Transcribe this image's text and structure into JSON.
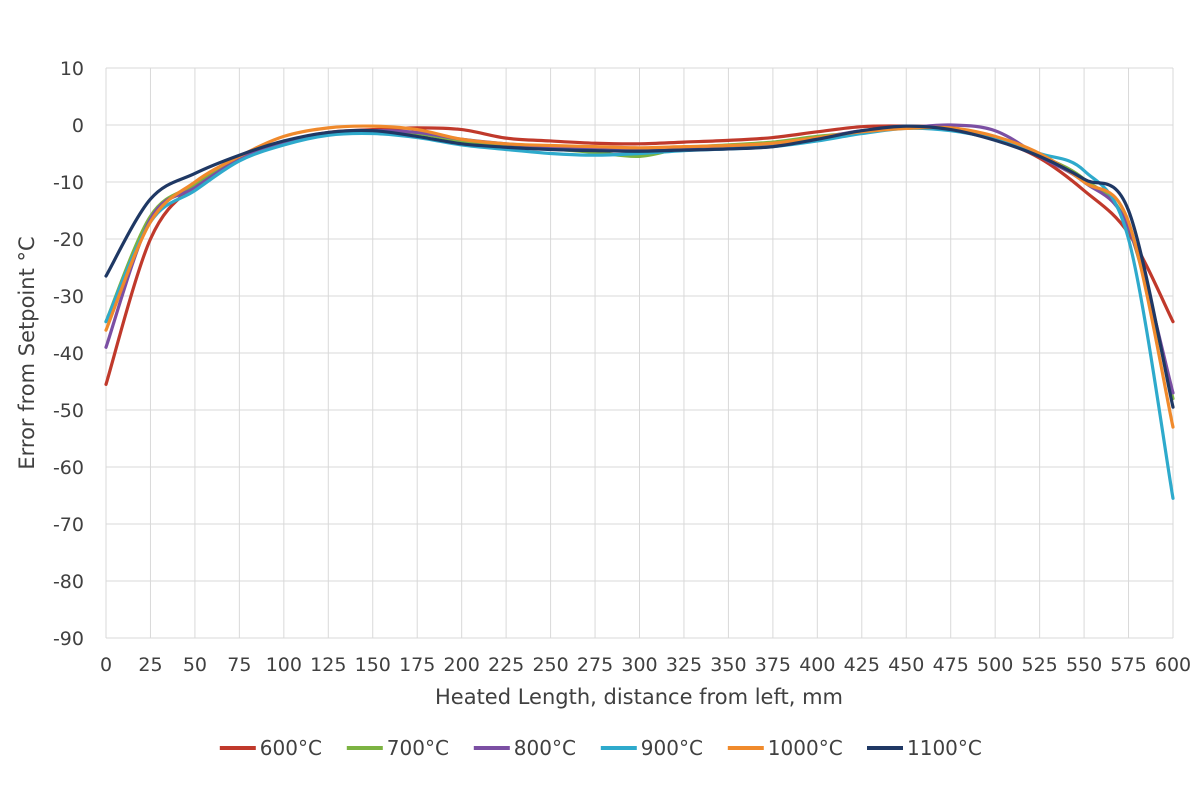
{
  "chart_data": {
    "type": "line",
    "title": "",
    "xlabel": "Heated Length, distance from left, mm",
    "ylabel": "Error from Setpoint °C",
    "xlim": [
      0,
      600
    ],
    "ylim": [
      -90,
      10
    ],
    "xticks": [
      0,
      25,
      50,
      75,
      100,
      125,
      150,
      175,
      200,
      225,
      250,
      275,
      300,
      325,
      350,
      375,
      400,
      425,
      450,
      475,
      500,
      525,
      550,
      575,
      600
    ],
    "yticks": [
      10,
      0,
      -10,
      -20,
      -30,
      -40,
      -50,
      -60,
      -70,
      -80,
      -90
    ],
    "grid": true,
    "legend_position": "bottom",
    "series": [
      {
        "name": "600°C",
        "color": "#c0392b",
        "x": [
          0,
          25,
          50,
          75,
          100,
          125,
          150,
          175,
          200,
          225,
          250,
          275,
          300,
          325,
          350,
          375,
          400,
          425,
          450,
          475,
          500,
          525,
          550,
          575,
          600
        ],
        "y": [
          -45.5,
          -20,
          -10.5,
          -6,
          -3,
          -1.3,
          -0.8,
          -0.5,
          -0.8,
          -2.3,
          -2.8,
          -3.2,
          -3.3,
          -3,
          -2.7,
          -2.2,
          -1.2,
          -0.3,
          -0.2,
          -0.5,
          -2.5,
          -5.8,
          -11.5,
          -19,
          -34.5
        ]
      },
      {
        "name": "700°C",
        "color": "#7cb342",
        "x": [
          0,
          25,
          50,
          75,
          100,
          125,
          150,
          175,
          200,
          225,
          250,
          275,
          300,
          325,
          350,
          375,
          400,
          425,
          450,
          475,
          500,
          525,
          550,
          575,
          600
        ],
        "y": [
          -34.5,
          -16,
          -10.5,
          -6,
          -3,
          -1.5,
          -1.1,
          -1.5,
          -2.8,
          -3.5,
          -4.2,
          -4.8,
          -5.5,
          -4,
          -3.5,
          -3,
          -2,
          -1.3,
          -0.5,
          -0.5,
          -2.2,
          -5.3,
          -9.5,
          -18,
          -48
        ]
      },
      {
        "name": "800°C",
        "color": "#7b4fa3",
        "x": [
          0,
          25,
          50,
          75,
          100,
          125,
          150,
          175,
          200,
          225,
          250,
          275,
          300,
          325,
          350,
          375,
          400,
          425,
          450,
          475,
          500,
          525,
          550,
          575,
          600
        ],
        "y": [
          -39,
          -16.5,
          -11,
          -6,
          -3,
          -1.5,
          -1,
          -1.3,
          -2.5,
          -3.3,
          -3.8,
          -4.2,
          -4.5,
          -4.3,
          -3.8,
          -3.3,
          -2.3,
          -1,
          -0.5,
          0,
          -1,
          -5.5,
          -10,
          -18,
          -47
        ]
      },
      {
        "name": "900°C",
        "color": "#2eaacc",
        "x": [
          0,
          25,
          50,
          75,
          100,
          125,
          150,
          175,
          200,
          225,
          250,
          275,
          300,
          325,
          350,
          375,
          400,
          425,
          450,
          475,
          500,
          525,
          550,
          575,
          600
        ],
        "y": [
          -34.5,
          -17,
          -11.5,
          -6.3,
          -3.5,
          -1.8,
          -1.5,
          -2.2,
          -3.5,
          -4.3,
          -5,
          -5.3,
          -5,
          -4.5,
          -4.2,
          -3.8,
          -2.8,
          -1.5,
          -0.6,
          -1,
          -2.5,
          -5,
          -8,
          -20,
          -65.5
        ]
      },
      {
        "name": "1000°C",
        "color": "#f08a2c",
        "x": [
          0,
          25,
          50,
          75,
          100,
          125,
          150,
          175,
          200,
          225,
          250,
          275,
          300,
          325,
          350,
          375,
          400,
          425,
          450,
          475,
          500,
          525,
          550,
          575,
          600
        ],
        "y": [
          -36,
          -17,
          -10,
          -5.5,
          -2,
          -0.5,
          -0.2,
          -0.8,
          -2.5,
          -3.3,
          -3.6,
          -3.8,
          -4,
          -3.8,
          -3.6,
          -3.2,
          -2.2,
          -1.2,
          -0.6,
          -0.5,
          -2,
          -5,
          -10,
          -17,
          -53
        ]
      },
      {
        "name": "1100°C",
        "color": "#1f3864",
        "x": [
          0,
          25,
          50,
          75,
          100,
          125,
          150,
          175,
          200,
          225,
          250,
          275,
          300,
          325,
          350,
          375,
          400,
          425,
          450,
          475,
          500,
          525,
          550,
          575,
          600
        ],
        "y": [
          -26.5,
          -13,
          -8.5,
          -5.3,
          -2.8,
          -1.3,
          -1,
          -2,
          -3.3,
          -3.9,
          -4.3,
          -4.5,
          -4.6,
          -4.4,
          -4.2,
          -3.8,
          -2.5,
          -1,
          -0.2,
          -0.8,
          -2.7,
          -5.5,
          -9.5,
          -15,
          -49.5
        ]
      }
    ]
  }
}
